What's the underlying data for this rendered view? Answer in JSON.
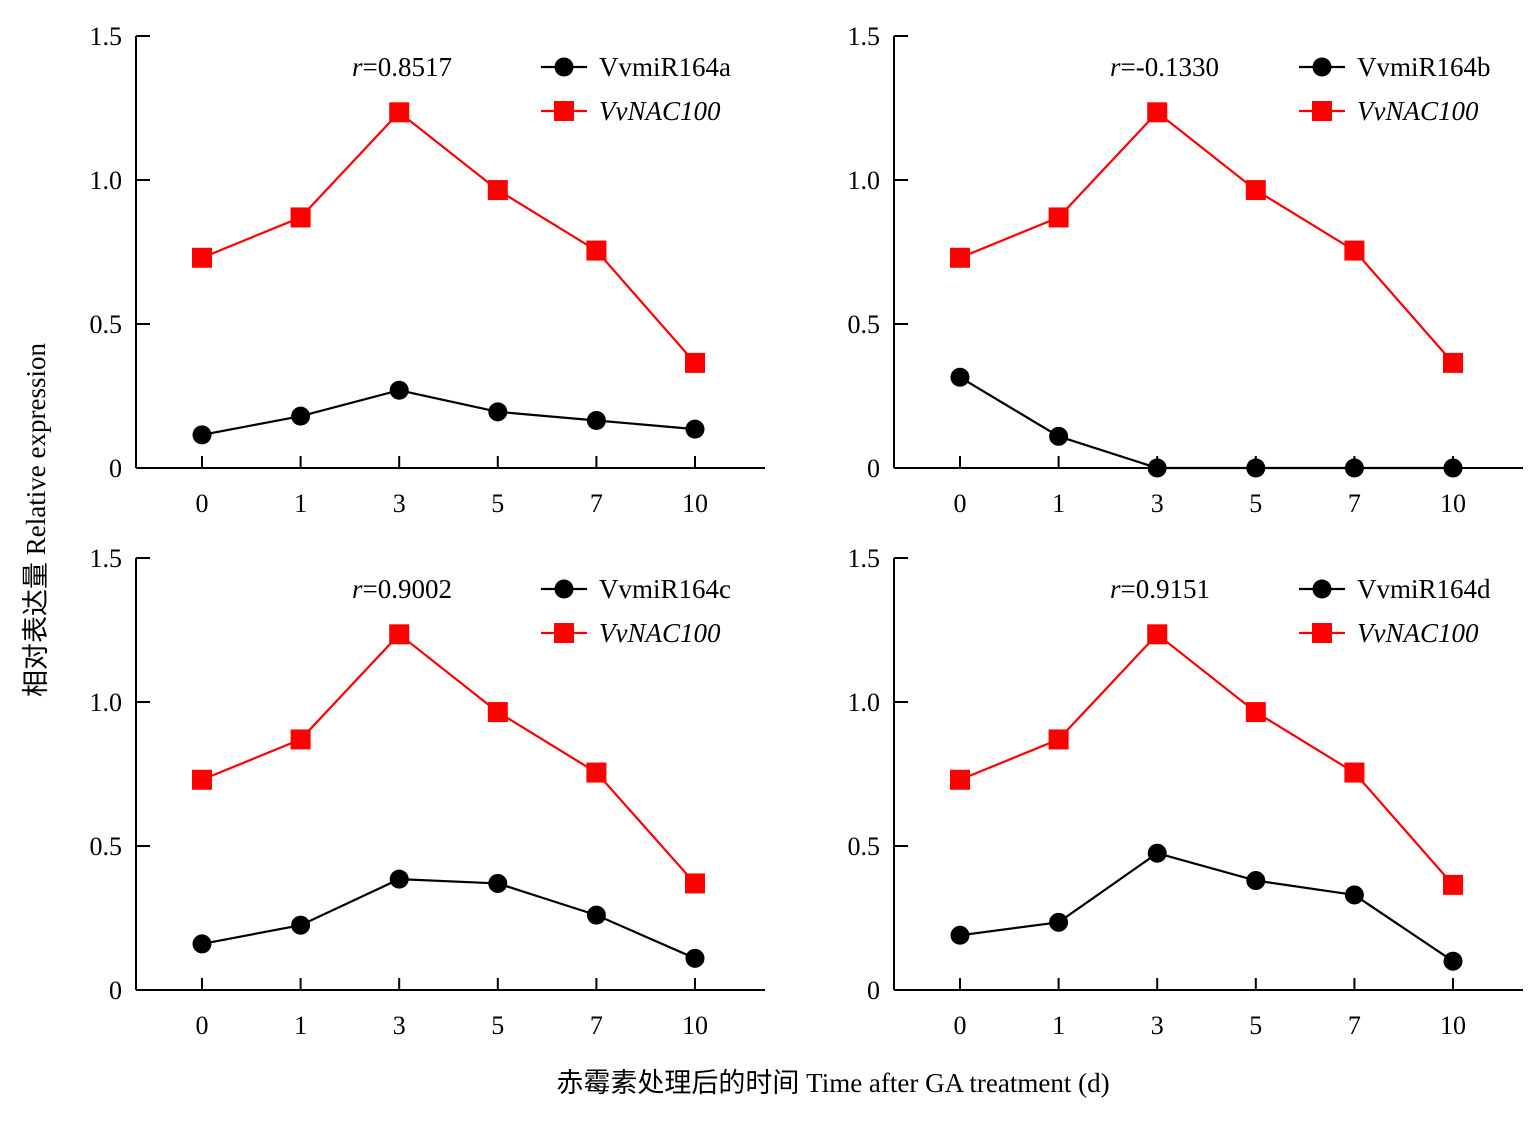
{
  "figure": {
    "ylabel": "相对表达量 Relative expression",
    "xlabel": "赤霉素处理后的时间 Time after GA treatment (d)"
  },
  "colors": {
    "mirna": "#000000",
    "nac": "#ff0000"
  },
  "chart_data": [
    {
      "type": "line",
      "categories": [
        "0",
        "1",
        "3",
        "5",
        "7",
        "10"
      ],
      "ylim": [
        0,
        1.5
      ],
      "yticks": [
        "0",
        "0.5",
        "1.0",
        "1.5"
      ],
      "r_label": {
        "prefix": "r",
        "value": "=0.8517"
      },
      "series": [
        {
          "name": "VvmiR164a",
          "marker": "circle",
          "italic": false,
          "values": [
            0.115,
            0.18,
            0.27,
            0.195,
            0.165,
            0.135
          ]
        },
        {
          "name": "VvNAC100",
          "marker": "square",
          "italic": true,
          "values": [
            0.73,
            0.87,
            1.235,
            0.965,
            0.755,
            0.365
          ]
        }
      ]
    },
    {
      "type": "line",
      "categories": [
        "0",
        "1",
        "3",
        "5",
        "7",
        "10"
      ],
      "ylim": [
        0,
        1.5
      ],
      "yticks": [
        "0",
        "0.5",
        "1.0",
        "1.5"
      ],
      "r_label": {
        "prefix": "r",
        "value": "=-0.1330"
      },
      "series": [
        {
          "name": "VvmiR164b",
          "marker": "circle",
          "italic": false,
          "values": [
            0.315,
            0.11,
            0.0,
            0.0,
            0.0,
            0.0
          ]
        },
        {
          "name": "VvNAC100",
          "marker": "square",
          "italic": true,
          "values": [
            0.73,
            0.87,
            1.235,
            0.965,
            0.755,
            0.365
          ]
        }
      ]
    },
    {
      "type": "line",
      "categories": [
        "0",
        "1",
        "3",
        "5",
        "7",
        "10"
      ],
      "ylim": [
        0,
        1.5
      ],
      "yticks": [
        "0",
        "0.5",
        "1.0",
        "1.5"
      ],
      "r_label": {
        "prefix": "r",
        "value": "=0.9002"
      },
      "series": [
        {
          "name": "VvmiR164c",
          "marker": "circle",
          "italic": false,
          "values": [
            0.16,
            0.225,
            0.385,
            0.37,
            0.26,
            0.11
          ]
        },
        {
          "name": "VvNAC100",
          "marker": "square",
          "italic": true,
          "values": [
            0.73,
            0.87,
            1.235,
            0.965,
            0.755,
            0.37
          ]
        }
      ]
    },
    {
      "type": "line",
      "categories": [
        "0",
        "1",
        "3",
        "5",
        "7",
        "10"
      ],
      "ylim": [
        0,
        1.5
      ],
      "yticks": [
        "0",
        "0.5",
        "1.0",
        "1.5"
      ],
      "r_label": {
        "prefix": "r",
        "value": "=0.9151"
      },
      "series": [
        {
          "name": "VvmiR164d",
          "marker": "circle",
          "italic": false,
          "values": [
            0.19,
            0.235,
            0.475,
            0.38,
            0.33,
            0.1
          ]
        },
        {
          "name": "VvNAC100",
          "marker": "square",
          "italic": true,
          "values": [
            0.73,
            0.87,
            1.235,
            0.965,
            0.755,
            0.365
          ]
        }
      ]
    }
  ]
}
